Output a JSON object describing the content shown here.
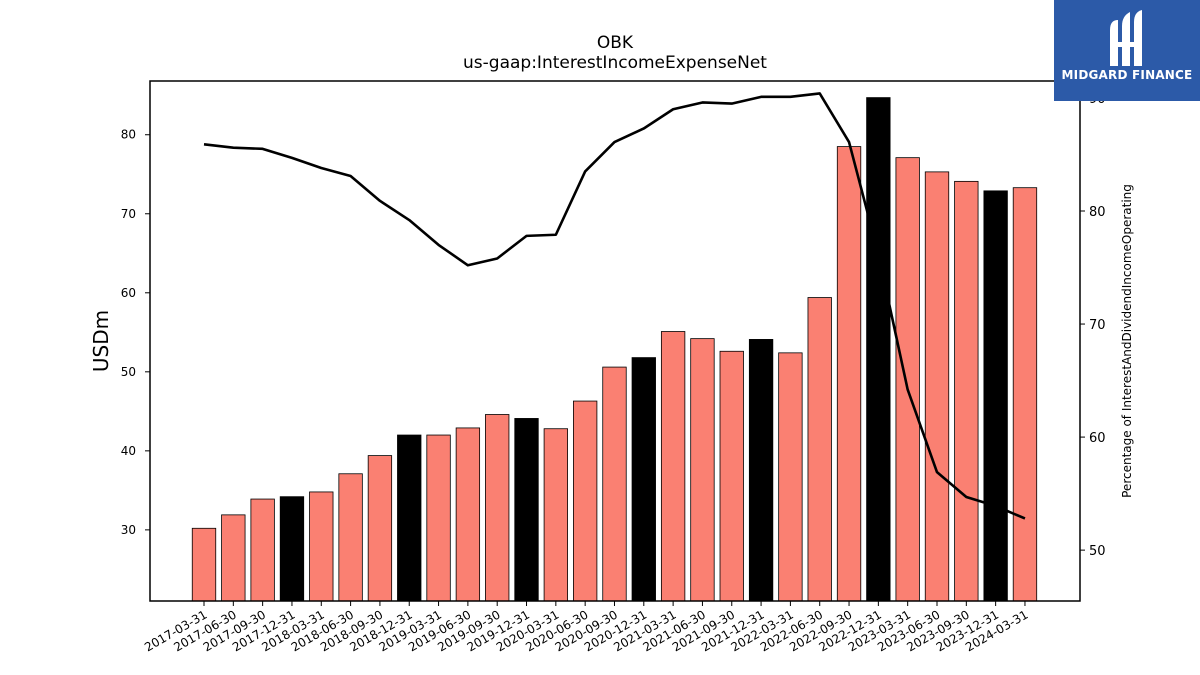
{
  "chart_data": {
    "type": "bar",
    "title": "OBK",
    "subtitle": "us-gaap:InterestIncomeExpenseNet",
    "ylabel": "USDm",
    "ylabel_right": "Percentage of InterestAndDividendIncomeOperating",
    "ylim": [
      21,
      86.8
    ],
    "ylim_right": [
      45.5,
      91.5
    ],
    "yticks": [
      30,
      40,
      50,
      60,
      70,
      80
    ],
    "yticks_right": [
      50,
      60,
      70,
      80,
      90
    ],
    "categories": [
      "2017-03-31",
      "2017-06-30",
      "2017-09-30",
      "2017-12-31",
      "2018-03-31",
      "2018-06-30",
      "2018-09-30",
      "2018-12-31",
      "2019-03-31",
      "2019-06-30",
      "2019-09-30",
      "2019-12-31",
      "2020-03-31",
      "2020-06-30",
      "2020-09-30",
      "2020-12-31",
      "2021-03-31",
      "2021-06-30",
      "2021-09-30",
      "2021-12-31",
      "2022-03-31",
      "2022-06-30",
      "2022-09-30",
      "2022-12-31",
      "2023-03-31",
      "2023-06-30",
      "2023-09-30",
      "2023-12-31",
      "2024-03-31"
    ],
    "series": [
      {
        "type": "bar",
        "values": [
          30.2,
          31.9,
          33.9,
          34.2,
          34.8,
          37.1,
          39.4,
          42.0,
          42.0,
          42.9,
          44.6,
          44.1,
          42.8,
          46.3,
          50.6,
          51.8,
          55.1,
          54.2,
          52.6,
          54.1,
          52.4,
          59.4,
          78.5,
          84.7,
          77.1,
          75.3,
          74.1,
          72.9,
          73.3
        ],
        "colors": [
          "#fa8072",
          "#fa8072",
          "#fa8072",
          "#000000",
          "#fa8072",
          "#fa8072",
          "#fa8072",
          "#000000",
          "#fa8072",
          "#fa8072",
          "#fa8072",
          "#000000",
          "#fa8072",
          "#fa8072",
          "#fa8072",
          "#000000",
          "#fa8072",
          "#fa8072",
          "#fa8072",
          "#000000",
          "#fa8072",
          "#fa8072",
          "#fa8072",
          "#000000",
          "#fa8072",
          "#fa8072",
          "#fa8072",
          "#000000",
          "#fa8072"
        ]
      },
      {
        "type": "line",
        "axis": "right",
        "values": [
          85.9,
          85.6,
          85.5,
          84.7,
          83.8,
          83.1,
          80.9,
          79.2,
          77.0,
          75.2,
          75.8,
          77.8,
          77.9,
          83.5,
          86.1,
          87.3,
          89.0,
          89.6,
          89.5,
          90.1,
          90.1,
          90.4,
          86.1,
          76.2,
          64.2,
          56.9,
          54.7,
          53.9,
          52.8
        ],
        "color": "#000000"
      }
    ],
    "grid": false,
    "legend": "none"
  },
  "logo": {
    "text": "MIDGARD FINANCE",
    "bg_color": "#2c5aa8"
  }
}
